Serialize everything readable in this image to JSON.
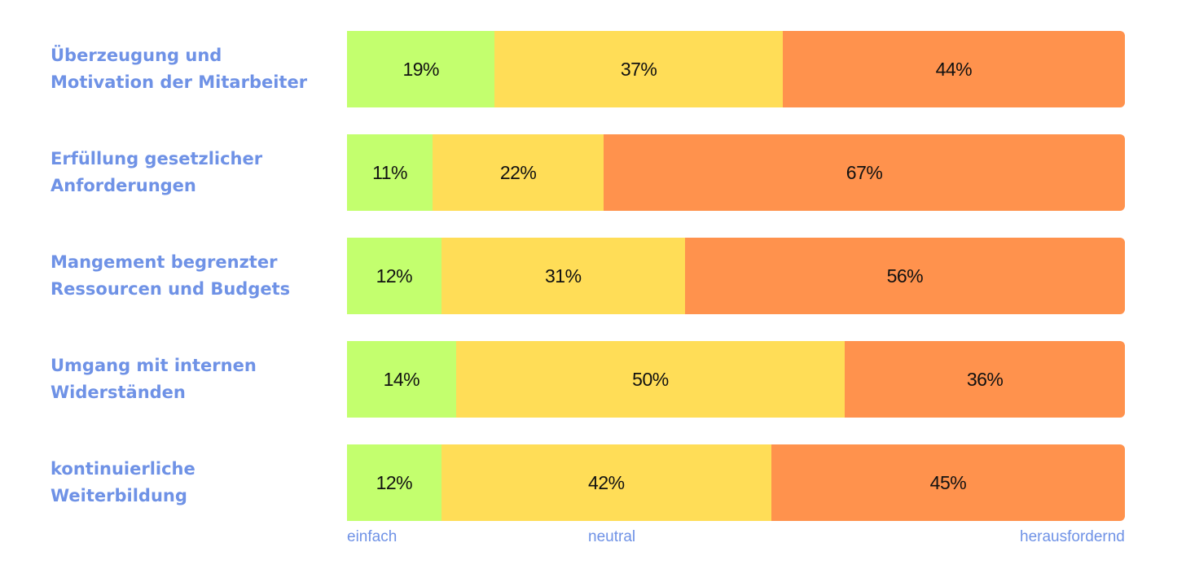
{
  "chart_data": {
    "type": "bar",
    "orientation": "horizontal",
    "stacked": true,
    "categories": [
      "Überzeugung und Motivation der Mitarbeiter",
      "Erfüllung gesetzlicher Anforderungen",
      "Mangement begrenzter Ressourcen und Budgets",
      "Umgang mit internen Widerständen",
      "kontinuierliche Weiterbildung"
    ],
    "category_lines": [
      [
        "Überzeugung und",
        "Motivation der Mitarbeiter"
      ],
      [
        "Erfüllung gesetzlicher",
        "Anforderungen"
      ],
      [
        "Mangement begrenzter",
        "Ressourcen und Budgets"
      ],
      [
        "Umgang mit internen",
        "Widerständen"
      ],
      [
        "kontinuierliche",
        "Weiterbildung"
      ]
    ],
    "series": [
      {
        "name": "einfach",
        "color": "#c3ff6e",
        "values": [
          19,
          11,
          12,
          14,
          12
        ]
      },
      {
        "name": "neutral",
        "color": "#ffdd57",
        "values": [
          37,
          22,
          31,
          50,
          42
        ]
      },
      {
        "name": "herausfordernd",
        "color": "#ff924d",
        "values": [
          44,
          67,
          56,
          36,
          45
        ]
      }
    ],
    "value_suffix": "%",
    "legend_position": "bottom",
    "grid": false,
    "label_color": "#6f92e6"
  }
}
